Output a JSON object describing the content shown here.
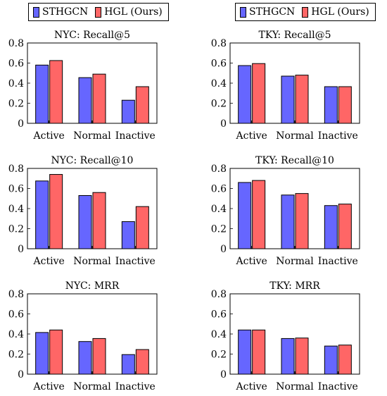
{
  "legend": {
    "series": [
      "STHGCN",
      "HGL (Ours)"
    ],
    "colors": [
      "#6666ff",
      "#ff6666"
    ]
  },
  "chart_data": [
    {
      "type": "bar",
      "title": "NYC: Recall@5",
      "categories": [
        "Active",
        "Normal",
        "Inactive"
      ],
      "series": [
        {
          "name": "STHGCN",
          "values": [
            0.58,
            0.455,
            0.23
          ]
        },
        {
          "name": "HGL (Ours)",
          "values": [
            0.625,
            0.49,
            0.365
          ]
        }
      ],
      "ylim": [
        0,
        0.8
      ],
      "yticks": [
        "0",
        "0.2",
        "0.4",
        "0.6",
        "0.8"
      ]
    },
    {
      "type": "bar",
      "title": "TKY: Recall@5",
      "categories": [
        "Active",
        "Normal",
        "Inactive"
      ],
      "series": [
        {
          "name": "STHGCN",
          "values": [
            0.575,
            0.47,
            0.365
          ]
        },
        {
          "name": "HGL (Ours)",
          "values": [
            0.595,
            0.48,
            0.365
          ]
        }
      ],
      "ylim": [
        0,
        0.8
      ],
      "yticks": [
        "0",
        "0.2",
        "0.4",
        "0.6",
        "0.8"
      ]
    },
    {
      "type": "bar",
      "title": "NYC: Recall@10",
      "categories": [
        "Active",
        "Normal",
        "Inactive"
      ],
      "series": [
        {
          "name": "STHGCN",
          "values": [
            0.675,
            0.53,
            0.27
          ]
        },
        {
          "name": "HGL (Ours)",
          "values": [
            0.74,
            0.56,
            0.42
          ]
        }
      ],
      "ylim": [
        0,
        0.8
      ],
      "yticks": [
        "0",
        "0.2",
        "0.4",
        "0.6",
        "0.8"
      ]
    },
    {
      "type": "bar",
      "title": "TKY: Recall@10",
      "categories": [
        "Active",
        "Normal",
        "Inactive"
      ],
      "series": [
        {
          "name": "STHGCN",
          "values": [
            0.66,
            0.535,
            0.43
          ]
        },
        {
          "name": "HGL (Ours)",
          "values": [
            0.68,
            0.55,
            0.445
          ]
        }
      ],
      "ylim": [
        0,
        0.8
      ],
      "yticks": [
        "0",
        "0.2",
        "0.4",
        "0.6",
        "0.8"
      ]
    },
    {
      "type": "bar",
      "title": "NYC: MRR",
      "categories": [
        "Active",
        "Normal",
        "Inactive"
      ],
      "series": [
        {
          "name": "STHGCN",
          "values": [
            0.415,
            0.325,
            0.195
          ]
        },
        {
          "name": "HGL (Ours)",
          "values": [
            0.44,
            0.355,
            0.245
          ]
        }
      ],
      "ylim": [
        0,
        0.8
      ],
      "yticks": [
        "0",
        "0.2",
        "0.4",
        "0.6",
        "0.8"
      ]
    },
    {
      "type": "bar",
      "title": "TKY: MRR",
      "categories": [
        "Active",
        "Normal",
        "Inactive"
      ],
      "series": [
        {
          "name": "STHGCN",
          "values": [
            0.44,
            0.355,
            0.28
          ]
        },
        {
          "name": "HGL (Ours)",
          "values": [
            0.44,
            0.36,
            0.29
          ]
        }
      ],
      "ylim": [
        0,
        0.8
      ],
      "yticks": [
        "0",
        "0.2",
        "0.4",
        "0.6",
        "0.8"
      ]
    }
  ]
}
